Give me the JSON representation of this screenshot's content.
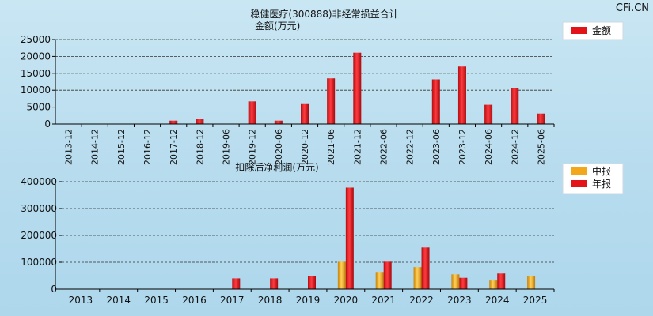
{
  "brand": "CFi.CN",
  "colors": {
    "amount": "#e3131a",
    "half_year": "#f2a81a",
    "annual": "#e3131a"
  },
  "chart_data": [
    {
      "type": "bar",
      "title": "稳健医疗(300888)非经常损益合计",
      "ylabel": "金额(万元)",
      "ylim": [
        0,
        25000
      ],
      "yticks": [
        "0",
        "5000",
        "10000",
        "15000",
        "20000",
        "25000"
      ],
      "legend": "top-right",
      "grid": true,
      "categories": [
        "2013-12",
        "2014-12",
        "2015-12",
        "2016-12",
        "2017-12",
        "2018-12",
        "2019-06",
        "2019-12",
        "2020-06",
        "2020-12",
        "2021-06",
        "2021-12",
        "2022-06",
        "2022-12",
        "2023-06",
        "2023-12",
        "2024-06",
        "2024-12",
        "2025-06"
      ],
      "series": [
        {
          "name": "金额",
          "values": [
            0,
            0,
            0,
            0,
            1000,
            1500,
            0,
            6700,
            1000,
            5900,
            13500,
            21100,
            0,
            0,
            13200,
            17000,
            5700,
            10600,
            3100
          ]
        }
      ]
    },
    {
      "type": "bar",
      "title": "扣除后净利润(万元)",
      "ylim": [
        0,
        400000
      ],
      "yticks": [
        "0",
        "100000",
        "200000",
        "300000",
        "400000"
      ],
      "legend": "top-right",
      "grid": true,
      "categories": [
        "2013",
        "2014",
        "2015",
        "2016",
        "2017",
        "2018",
        "2019",
        "2020",
        "2021",
        "2022",
        "2023",
        "2024",
        "2025"
      ],
      "series": [
        {
          "name": "中报",
          "values": [
            null,
            null,
            null,
            null,
            null,
            null,
            null,
            102000,
            64000,
            82000,
            55000,
            32000,
            47000
          ]
        },
        {
          "name": "年报",
          "values": [
            null,
            null,
            null,
            null,
            40000,
            40000,
            50000,
            378000,
            102000,
            155000,
            42000,
            58000,
            null
          ]
        }
      ]
    }
  ]
}
